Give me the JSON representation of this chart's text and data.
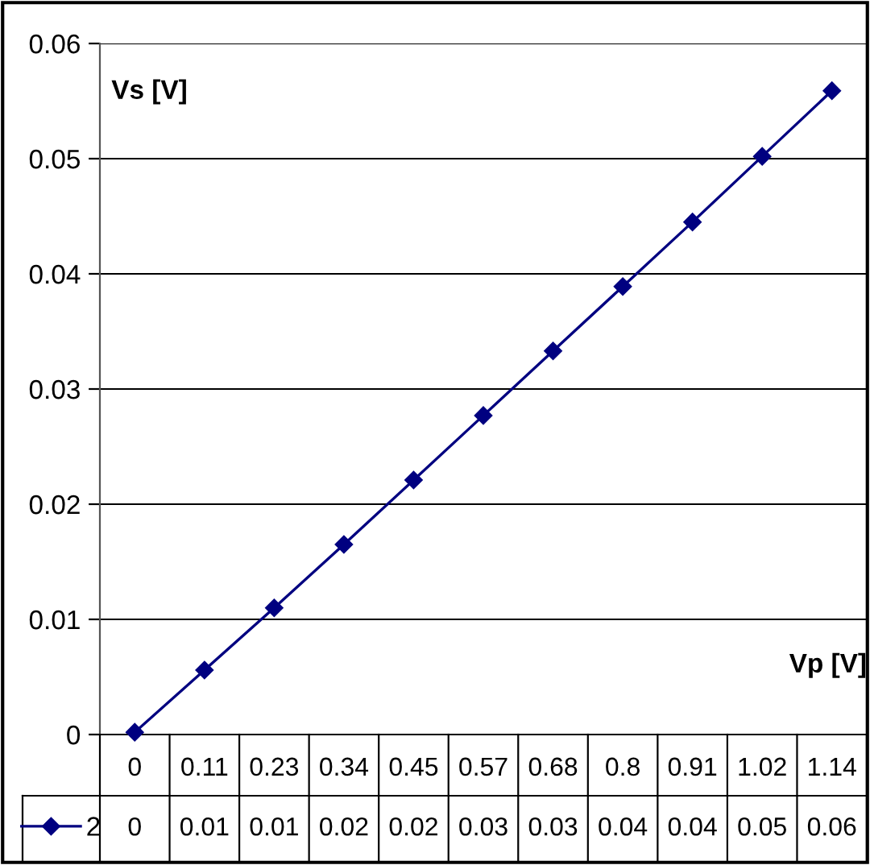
{
  "chart_data": {
    "type": "line",
    "xlabel": "Vp [V]",
    "ylabel": "Vs [V]",
    "categories": [
      "0",
      "0.11",
      "0.23",
      "0.34",
      "0.45",
      "0.57",
      "0.68",
      "0.8",
      "0.91",
      "1.02",
      "1.14"
    ],
    "series": [
      {
        "name": "2",
        "color": "#000080",
        "values": [
          0.0002,
          0.0056,
          0.011,
          0.0165,
          0.0221,
          0.0277,
          0.0333,
          0.0389,
          0.0445,
          0.0502,
          0.0559
        ],
        "value_labels": [
          "0",
          "0.01",
          "0.01",
          "0.02",
          "0.02",
          "0.03",
          "0.03",
          "0.04",
          "0.04",
          "0.05",
          "0.06"
        ]
      }
    ],
    "ylim": [
      0,
      0.06
    ],
    "yticks": [
      0,
      0.01,
      0.02,
      0.03,
      0.04,
      0.05,
      0.06
    ],
    "grid": "y",
    "marker": "diamond",
    "line_style": "solid",
    "legend": "bottom left"
  }
}
